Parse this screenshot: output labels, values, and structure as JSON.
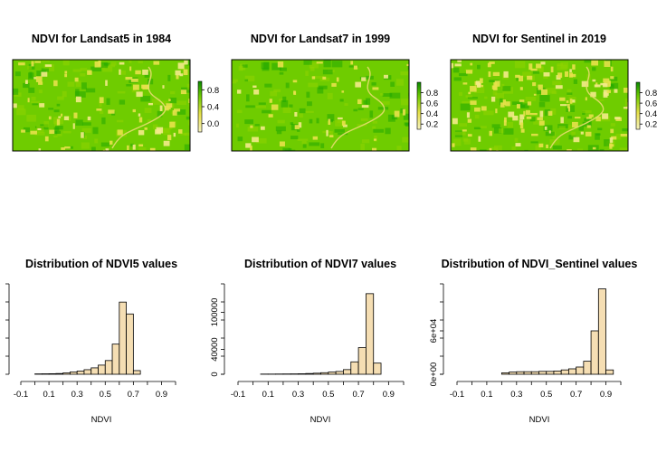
{
  "colors": {
    "ndvi_high": "#21a800",
    "ndvi_mid": "#6fcc00",
    "ndvi_low": "#e7e14a",
    "bar_fill": "#f5deb3",
    "bar_stroke": "#000000"
  },
  "chart_data": [
    {
      "type": "heatmap",
      "title": "NDVI for Landsat5 in 1984",
      "legend_ticks": [
        "0.0",
        "0.4",
        "0.8"
      ],
      "legend_range": [
        -0.2,
        1.0
      ],
      "legend": "right"
    },
    {
      "type": "heatmap",
      "title": "NDVI for Landsat7 in 1999",
      "legend_ticks": [
        "0.2",
        "0.4",
        "0.6",
        "0.8"
      ],
      "legend_range": [
        0.1,
        1.0
      ],
      "legend": "right"
    },
    {
      "type": "heatmap",
      "title": "NDVI for Sentinel in 2019",
      "legend_ticks": [
        "0.2",
        "0.4",
        "0.6",
        "0.8"
      ],
      "legend_range": [
        0.1,
        1.0
      ],
      "legend": "right"
    },
    {
      "type": "bar",
      "title": "Distribution of NDVI5 values",
      "xlabel": "NDVI",
      "ylabel": "",
      "x_ticks": [
        "-0.1",
        "0.1",
        "0.3",
        "0.5",
        "0.7",
        "0.9"
      ],
      "x_range": [
        -0.1,
        1.0
      ],
      "bin_start": 0.0,
      "bin_width": 0.05,
      "values": [
        400,
        500,
        600,
        800,
        1500,
        2500,
        3500,
        5000,
        7000,
        10000,
        15000,
        33000,
        79000,
        66000,
        4000
      ],
      "y_ticks": [],
      "ylim": [
        0,
        95000
      ]
    },
    {
      "type": "bar",
      "title": "Distribution of NDVI7 values",
      "xlabel": "NDVI",
      "ylabel": "",
      "x_ticks": [
        "-0.1",
        "0.1",
        "0.3",
        "0.5",
        "0.7",
        "0.9"
      ],
      "x_range": [
        -0.1,
        1.0
      ],
      "bin_start": 0.05,
      "bin_width": 0.05,
      "values": [
        300,
        300,
        400,
        500,
        600,
        800,
        1200,
        1700,
        2500,
        3500,
        4500,
        7500,
        20000,
        43000,
        130000,
        18000
      ],
      "y_ticks": [
        "0",
        "40000",
        "100000"
      ],
      "ylim": [
        0,
        140000
      ]
    },
    {
      "type": "bar",
      "title": "Distribution of NDVI_Sentinel values",
      "xlabel": "NDVI",
      "ylabel": "",
      "x_ticks": [
        "-0.1",
        "0.1",
        "0.3",
        "0.5",
        "0.7",
        "0.9"
      ],
      "x_range": [
        -0.1,
        1.0
      ],
      "bin_start": 0.2,
      "bin_width": 0.05,
      "values": [
        2000,
        3000,
        3500,
        3500,
        3500,
        4000,
        4000,
        4500,
        6000,
        7500,
        10000,
        18000,
        60000,
        118000,
        6000
      ],
      "y_ticks": [
        "0e+00",
        "6e+04"
      ],
      "ylim": [
        0,
        120000
      ]
    }
  ]
}
